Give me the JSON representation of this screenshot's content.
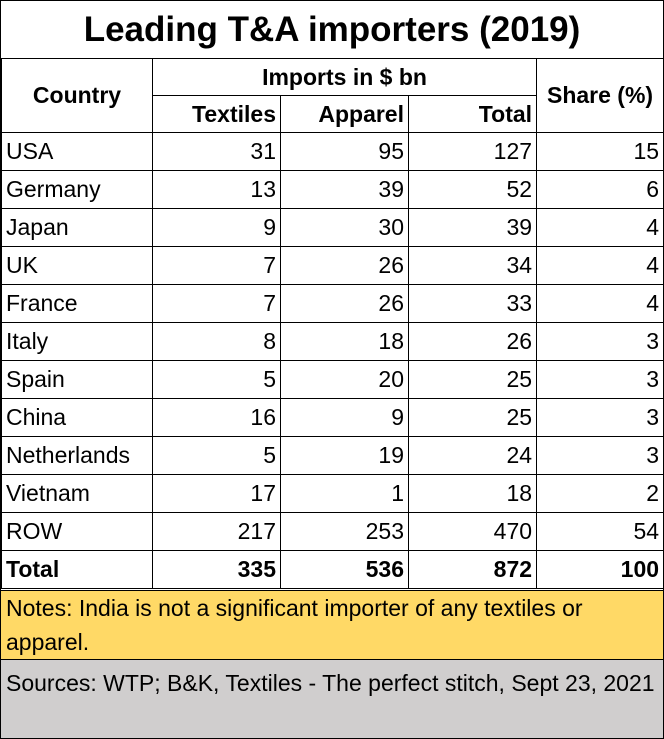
{
  "title": "Leading T&A importers (2019)",
  "headers": {
    "country": "Country",
    "imports_group": "Imports in $ bn",
    "textiles": "Textiles",
    "apparel": "Apparel",
    "total": "Total",
    "share": "Share (%)"
  },
  "rows": [
    {
      "country": "USA",
      "textiles": "31",
      "apparel": "95",
      "total": "127",
      "share": "15"
    },
    {
      "country": "Germany",
      "textiles": "13",
      "apparel": "39",
      "total": "52",
      "share": "6"
    },
    {
      "country": "Japan",
      "textiles": "9",
      "apparel": "30",
      "total": "39",
      "share": "4"
    },
    {
      "country": "UK",
      "textiles": "7",
      "apparel": "26",
      "total": "34",
      "share": "4"
    },
    {
      "country": "France",
      "textiles": "7",
      "apparel": "26",
      "total": "33",
      "share": "4"
    },
    {
      "country": "Italy",
      "textiles": "8",
      "apparel": "18",
      "total": "26",
      "share": "3"
    },
    {
      "country": "Spain",
      "textiles": "5",
      "apparel": "20",
      "total": "25",
      "share": "3"
    },
    {
      "country": "China",
      "textiles": "16",
      "apparel": "9",
      "total": "25",
      "share": "3"
    },
    {
      "country": "Netherlands",
      "textiles": "5",
      "apparel": "19",
      "total": "24",
      "share": "3"
    },
    {
      "country": "Vietnam",
      "textiles": "17",
      "apparel": "1",
      "total": "18",
      "share": "2"
    },
    {
      "country": "ROW",
      "textiles": "217",
      "apparel": "253",
      "total": "470",
      "share": "54"
    }
  ],
  "total_row": {
    "country": "Total",
    "textiles": "335",
    "apparel": "536",
    "total": "872",
    "share": "100"
  },
  "notes": "Notes: India is not a significant importer of any textiles or apparel.",
  "sources": "Sources: WTP; B&K, Textiles - The perfect stitch, Sept 23, 2021",
  "colors": {
    "notes_bg": "#ffd966",
    "sources_bg": "#d0cece"
  },
  "chart_data": {
    "type": "table",
    "title": "Leading T&A importers (2019)",
    "columns": [
      "Country",
      "Textiles",
      "Apparel",
      "Total",
      "Share (%)"
    ],
    "column_group": "Imports in $ bn",
    "data": [
      [
        "USA",
        31,
        95,
        127,
        15
      ],
      [
        "Germany",
        13,
        39,
        52,
        6
      ],
      [
        "Japan",
        9,
        30,
        39,
        4
      ],
      [
        "UK",
        7,
        26,
        34,
        4
      ],
      [
        "France",
        7,
        26,
        33,
        4
      ],
      [
        "Italy",
        8,
        18,
        26,
        3
      ],
      [
        "Spain",
        5,
        20,
        25,
        3
      ],
      [
        "China",
        16,
        9,
        25,
        3
      ],
      [
        "Netherlands",
        5,
        19,
        24,
        3
      ],
      [
        "Vietnam",
        17,
        1,
        18,
        2
      ],
      [
        "ROW",
        217,
        253,
        470,
        54
      ],
      [
        "Total",
        335,
        536,
        872,
        100
      ]
    ]
  }
}
